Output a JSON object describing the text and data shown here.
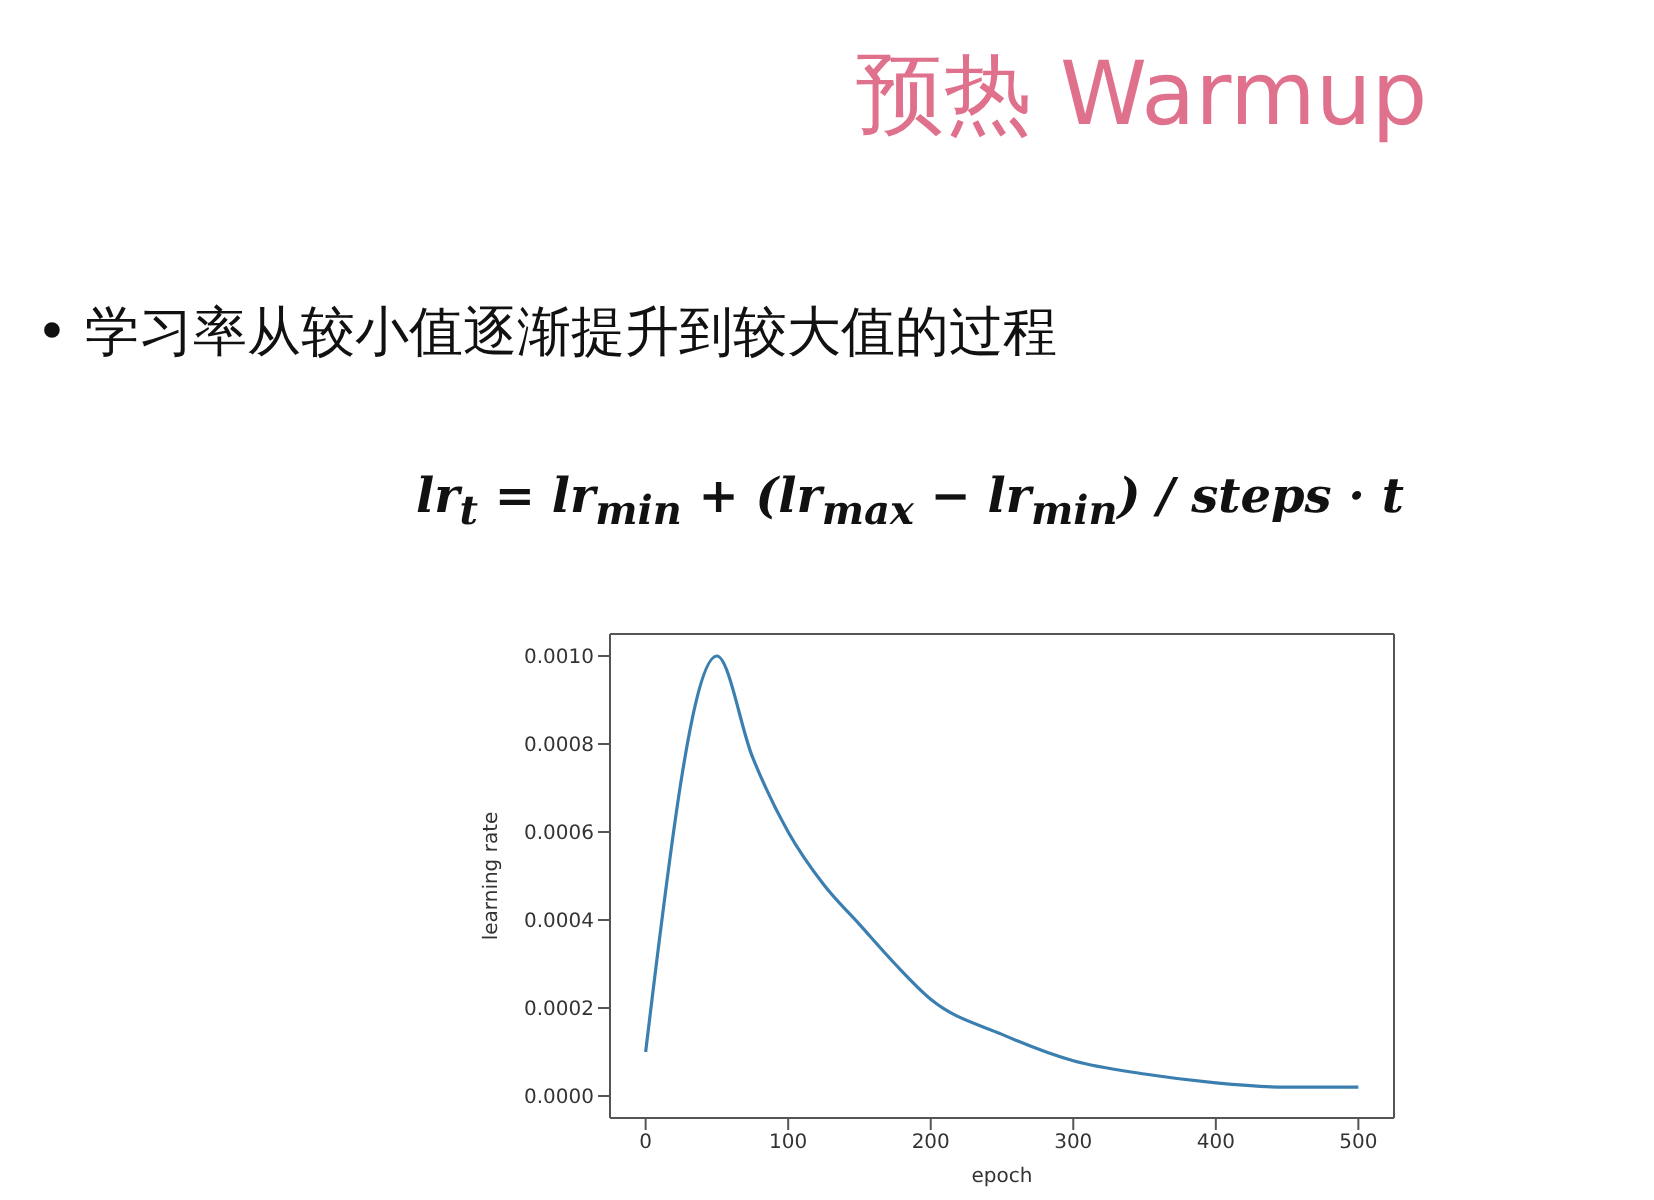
{
  "chart_data": {
    "type": "line",
    "title": "预热 Warmup",
    "subtitle": "• 学习率从较小值逐渐提升到较大值的过程",
    "annotations": [
      "lr$_{t}$ = lr$_{min}$ + (lr$_{max}$ − lr$_{min}$) / steps · t"
    ],
    "xlabel": "epoch",
    "ylabel": "learning rate",
    "x": [
      0,
      50,
      75,
      100,
      125,
      150,
      175,
      200,
      250,
      300,
      350,
      400,
      450,
      500
    ],
    "series": [
      {
        "color": "#3b7fb0",
        "values": [
          0.0001,
          0.001,
          0.00077,
          0.0006,
          0.00048,
          0.00039,
          0.0003,
          0.00022,
          0.00014,
          8e-05,
          5e-05,
          3e-05,
          2e-05,
          2e-05
        ]
      }
    ],
    "xlim": [
      -25,
      525
    ],
    "xticks": [
      0,
      100,
      200,
      300,
      400,
      500
    ],
    "ylim": [
      -5e-05,
      0.00105
    ],
    "yticks": [
      {
        "value": 0,
        "label": "0.0000"
      },
      {
        "value": 0.0002,
        "label": "0.0002"
      },
      {
        "value": 0.0004,
        "label": "0.0004"
      },
      {
        "value": 0.0006,
        "label": "0.0006"
      },
      {
        "value": 0.0008,
        "label": "0.0008"
      },
      {
        "value": 0.001,
        "label": "0.0010"
      }
    ],
    "grid": false,
    "legend": false,
    "marker": "none",
    "line_style": "solid"
  }
}
